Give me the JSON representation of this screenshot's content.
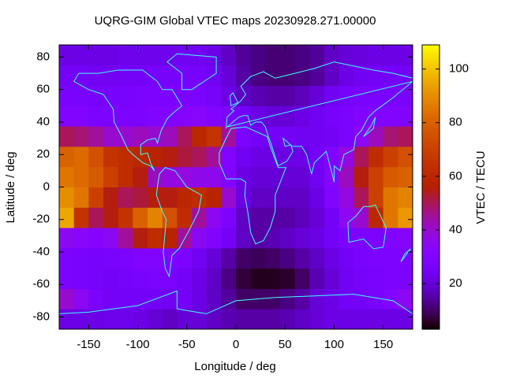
{
  "chart_data": {
    "type": "heatmap",
    "title": "UQRG-GIM Global VTEC maps 20230928.271.00000",
    "xlabel": "Longitude / deg",
    "ylabel": "Latitude / deg",
    "colorbar_label": "VTEC / TECU",
    "xlim": [
      -180,
      180
    ],
    "ylim": [
      -87.5,
      87.5
    ],
    "xticks": [
      -150,
      -100,
      -50,
      0,
      50,
      100,
      150
    ],
    "yticks": [
      -80,
      -60,
      -40,
      -20,
      0,
      20,
      40,
      60,
      80
    ],
    "zlim": [
      3,
      109
    ],
    "zticks": [
      20,
      40,
      60,
      80,
      100
    ],
    "x": [
      -172.5,
      -157.5,
      -142.5,
      -127.5,
      -112.5,
      -97.5,
      -82.5,
      -67.5,
      -52.5,
      -37.5,
      -22.5,
      -7.5,
      7.5,
      22.5,
      37.5,
      52.5,
      67.5,
      82.5,
      97.5,
      112.5,
      127.5,
      142.5,
      157.5,
      172.5
    ],
    "y": [
      -81.25,
      -68.75,
      -56.25,
      -43.75,
      -31.25,
      -18.75,
      -6.25,
      6.25,
      18.75,
      31.25,
      43.75,
      56.25,
      68.75,
      81.25
    ],
    "z": [
      [
        22,
        22,
        22,
        23,
        23,
        22,
        20,
        18,
        20,
        20,
        18,
        16,
        15,
        15,
        15,
        16,
        18,
        20,
        22,
        22,
        22,
        22,
        22,
        22
      ],
      [
        40,
        35,
        28,
        25,
        25,
        25,
        25,
        24,
        25,
        22,
        18,
        14,
        10,
        10,
        10,
        12,
        15,
        20,
        22,
        25,
        25,
        27,
        30,
        35
      ],
      [
        28,
        27,
        26,
        25,
        26,
        27,
        28,
        28,
        25,
        22,
        18,
        12,
        7,
        5,
        5,
        6,
        10,
        16,
        20,
        24,
        26,
        27,
        28,
        28
      ],
      [
        28,
        27,
        26,
        27,
        28,
        30,
        30,
        30,
        28,
        24,
        20,
        15,
        10,
        9,
        10,
        12,
        15,
        18,
        22,
        25,
        27,
        28,
        28,
        28
      ],
      [
        35,
        33,
        32,
        35,
        45,
        55,
        62,
        58,
        45,
        35,
        30,
        25,
        18,
        15,
        16,
        18,
        20,
        22,
        25,
        28,
        28,
        28,
        30,
        32
      ],
      [
        95,
        65,
        50,
        55,
        65,
        80,
        88,
        75,
        62,
        45,
        35,
        28,
        18,
        15,
        15,
        15,
        17,
        20,
        25,
        35,
        40,
        60,
        85,
        92
      ],
      [
        90,
        85,
        70,
        55,
        50,
        52,
        55,
        55,
        60,
        62,
        58,
        40,
        22,
        18,
        18,
        18,
        18,
        22,
        30,
        38,
        50,
        70,
        85,
        88
      ],
      [
        85,
        82,
        78,
        70,
        62,
        55,
        42,
        38,
        38,
        36,
        36,
        30,
        22,
        20,
        20,
        20,
        20,
        24,
        32,
        42,
        55,
        70,
        78,
        80
      ],
      [
        80,
        82,
        75,
        65,
        62,
        60,
        58,
        55,
        52,
        50,
        45,
        30,
        24,
        22,
        22,
        22,
        22,
        25,
        30,
        38,
        50,
        62,
        70,
        75
      ],
      [
        50,
        48,
        45,
        40,
        40,
        42,
        40,
        42,
        50,
        60,
        65,
        45,
        28,
        25,
        25,
        25,
        24,
        24,
        25,
        28,
        35,
        42,
        48,
        50
      ],
      [
        30,
        30,
        28,
        28,
        28,
        28,
        30,
        30,
        32,
        33,
        30,
        28,
        25,
        22,
        20,
        20,
        22,
        24,
        26,
        28,
        30,
        30,
        30,
        30
      ],
      [
        27,
        27,
        26,
        26,
        27,
        28,
        28,
        28,
        28,
        28,
        26,
        22,
        18,
        16,
        15,
        15,
        17,
        20,
        24,
        26,
        27,
        27,
        27,
        27
      ],
      [
        25,
        25,
        24,
        24,
        25,
        25,
        26,
        26,
        26,
        26,
        24,
        20,
        15,
        12,
        11,
        11,
        12,
        14,
        18,
        22,
        24,
        25,
        25,
        25
      ],
      [
        22,
        22,
        22,
        22,
        23,
        23,
        23,
        23,
        24,
        24,
        22,
        18,
        14,
        12,
        11,
        11,
        12,
        14,
        18,
        20,
        21,
        22,
        22,
        22
      ]
    ]
  }
}
